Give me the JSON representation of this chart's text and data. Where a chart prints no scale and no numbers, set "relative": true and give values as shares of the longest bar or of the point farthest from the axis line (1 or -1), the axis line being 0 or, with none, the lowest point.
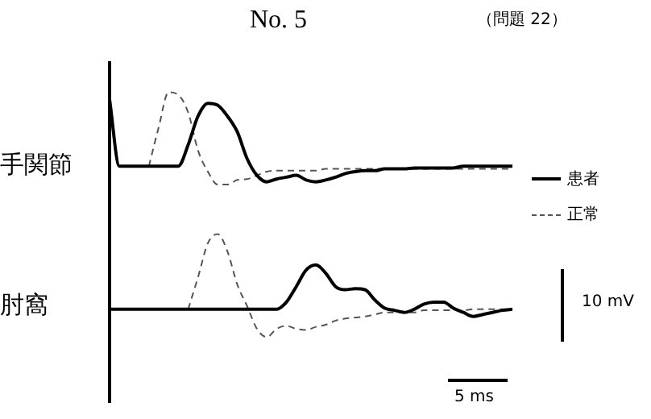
{
  "chart_data": [
    {
      "type": "line",
      "title": "No.  5",
      "subtitle": "（問題 22）",
      "ylabel": "手関節",
      "relative": true,
      "tick_labels": false,
      "legend": "right",
      "categories": [
        null,
        null,
        null,
        null,
        null,
        null,
        null,
        null,
        null,
        null,
        null,
        null,
        null,
        null,
        null,
        null,
        null,
        null,
        null,
        null,
        null,
        null,
        null,
        null,
        null,
        null,
        null,
        null,
        null,
        null,
        null,
        null,
        null,
        null,
        null,
        null,
        null,
        null,
        null,
        null,
        null,
        null
      ],
      "series": [
        {
          "name": "患者",
          "color": "#000000",
          "line_style": "solid",
          "values": [
            0.92,
            0.2,
            0.2,
            0.2,
            0.2,
            0.2,
            0.2,
            0.2,
            0.43,
            0.74,
            0.88,
            0.86,
            0.74,
            0.57,
            0.28,
            0.1,
            0.03,
            0.06,
            0.08,
            0.1,
            0.05,
            0.03,
            0.05,
            0.08,
            0.12,
            0.14,
            0.15,
            0.15,
            0.17,
            0.17,
            0.17,
            0.18,
            0.18,
            0.18,
            0.18,
            0.18,
            0.2,
            0.2,
            0.2,
            0.2,
            0.2,
            0.2
          ]
        },
        {
          "name": "正常",
          "color": "#555555",
          "line_style": "dashed",
          "values": [
            null,
            null,
            null,
            null,
            0.2,
            0.62,
            1,
            0.97,
            0.78,
            0.37,
            0.14,
            0,
            0,
            0.05,
            0.06,
            0.1,
            0.14,
            0.15,
            0.15,
            0.15,
            0.15,
            0.15,
            0.17,
            0.17,
            0.17,
            0.17,
            0.17,
            0.17,
            0.17,
            0.17,
            0.17,
            0.17,
            0.17,
            0.17,
            0.17,
            0.17,
            0.17,
            0.17,
            0.17,
            0.17,
            0.17,
            0.17
          ]
        }
      ]
    },
    {
      "type": "line",
      "ylabel": "肘窩",
      "relative": true,
      "tick_labels": false,
      "annotations": [
        "10 mV",
        "5 ms"
      ],
      "categories": [
        null,
        null,
        null,
        null,
        null,
        null,
        null,
        null,
        null,
        null,
        null,
        null,
        null,
        null,
        null,
        null,
        null,
        null,
        null,
        null,
        null,
        null,
        null,
        null,
        null,
        null,
        null,
        null,
        null,
        null,
        null,
        null,
        null,
        null,
        null,
        null,
        null,
        null,
        null,
        null,
        null,
        null
      ],
      "series": [
        {
          "color": "#000000",
          "line_style": "solid",
          "values": [
            0.27,
            0.27,
            0.27,
            0.27,
            0.27,
            0.27,
            0.27,
            0.27,
            0.27,
            0.27,
            0.27,
            0.27,
            0.27,
            0.27,
            0.27,
            0.27,
            0.27,
            0.27,
            0.34,
            0.49,
            0.65,
            0.7,
            0.62,
            0.49,
            0.46,
            0.47,
            0.46,
            0.36,
            0.28,
            0.26,
            0.24,
            0.27,
            0.32,
            0.34,
            0.34,
            0.28,
            0.24,
            0.2,
            0.22,
            0.24,
            0.26,
            0.27
          ]
        },
        {
          "color": "#555555",
          "line_style": "dashed",
          "values": [
            null,
            null,
            null,
            null,
            null,
            null,
            null,
            null,
            0.27,
            0.58,
            0.91,
            1,
            0.83,
            0.51,
            0.3,
            0.08,
            0,
            0.08,
            0.11,
            0.08,
            0.07,
            0.1,
            0.12,
            0.16,
            0.18,
            0.19,
            0.2,
            0.22,
            0.24,
            0.24,
            0.24,
            0.24,
            0.26,
            0.26,
            0.26,
            0.26,
            0.26,
            0.27,
            0.27,
            0.27,
            0.27,
            0.27
          ]
        }
      ]
    }
  ]
}
